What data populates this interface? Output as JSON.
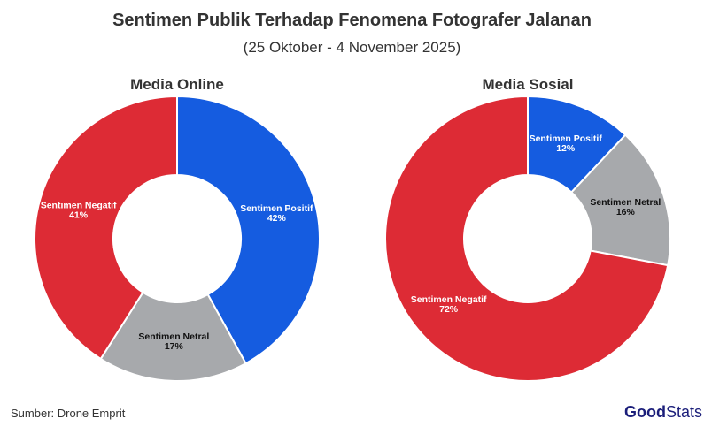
{
  "title": "Sentimen Publik Terhadap Fenomena Fotografer Jalanan",
  "subtitle": "(25 Oktober - 4 November 2025)",
  "source": "Sumber: Drone Emprit",
  "logo": {
    "bold": "Good",
    "regular": "Stats"
  },
  "colors": {
    "positif": "#155ce0",
    "netral": "#a7a9ac",
    "negatif": "#dd2b35"
  },
  "chart_data": [
    {
      "type": "pie",
      "title": "Media Online",
      "categories": [
        "Sentimen Positif",
        "Sentimen Netral",
        "Sentimen Negatif"
      ],
      "values": [
        42,
        17,
        41
      ],
      "labels": [
        "42%",
        "17%",
        "41%"
      ]
    },
    {
      "type": "pie",
      "title": "Media Sosial",
      "categories": [
        "Sentimen Positif",
        "Sentimen Netral",
        "Sentimen Negatif"
      ],
      "values": [
        12,
        16,
        72
      ],
      "labels": [
        "12%",
        "16%",
        "72%"
      ]
    }
  ]
}
